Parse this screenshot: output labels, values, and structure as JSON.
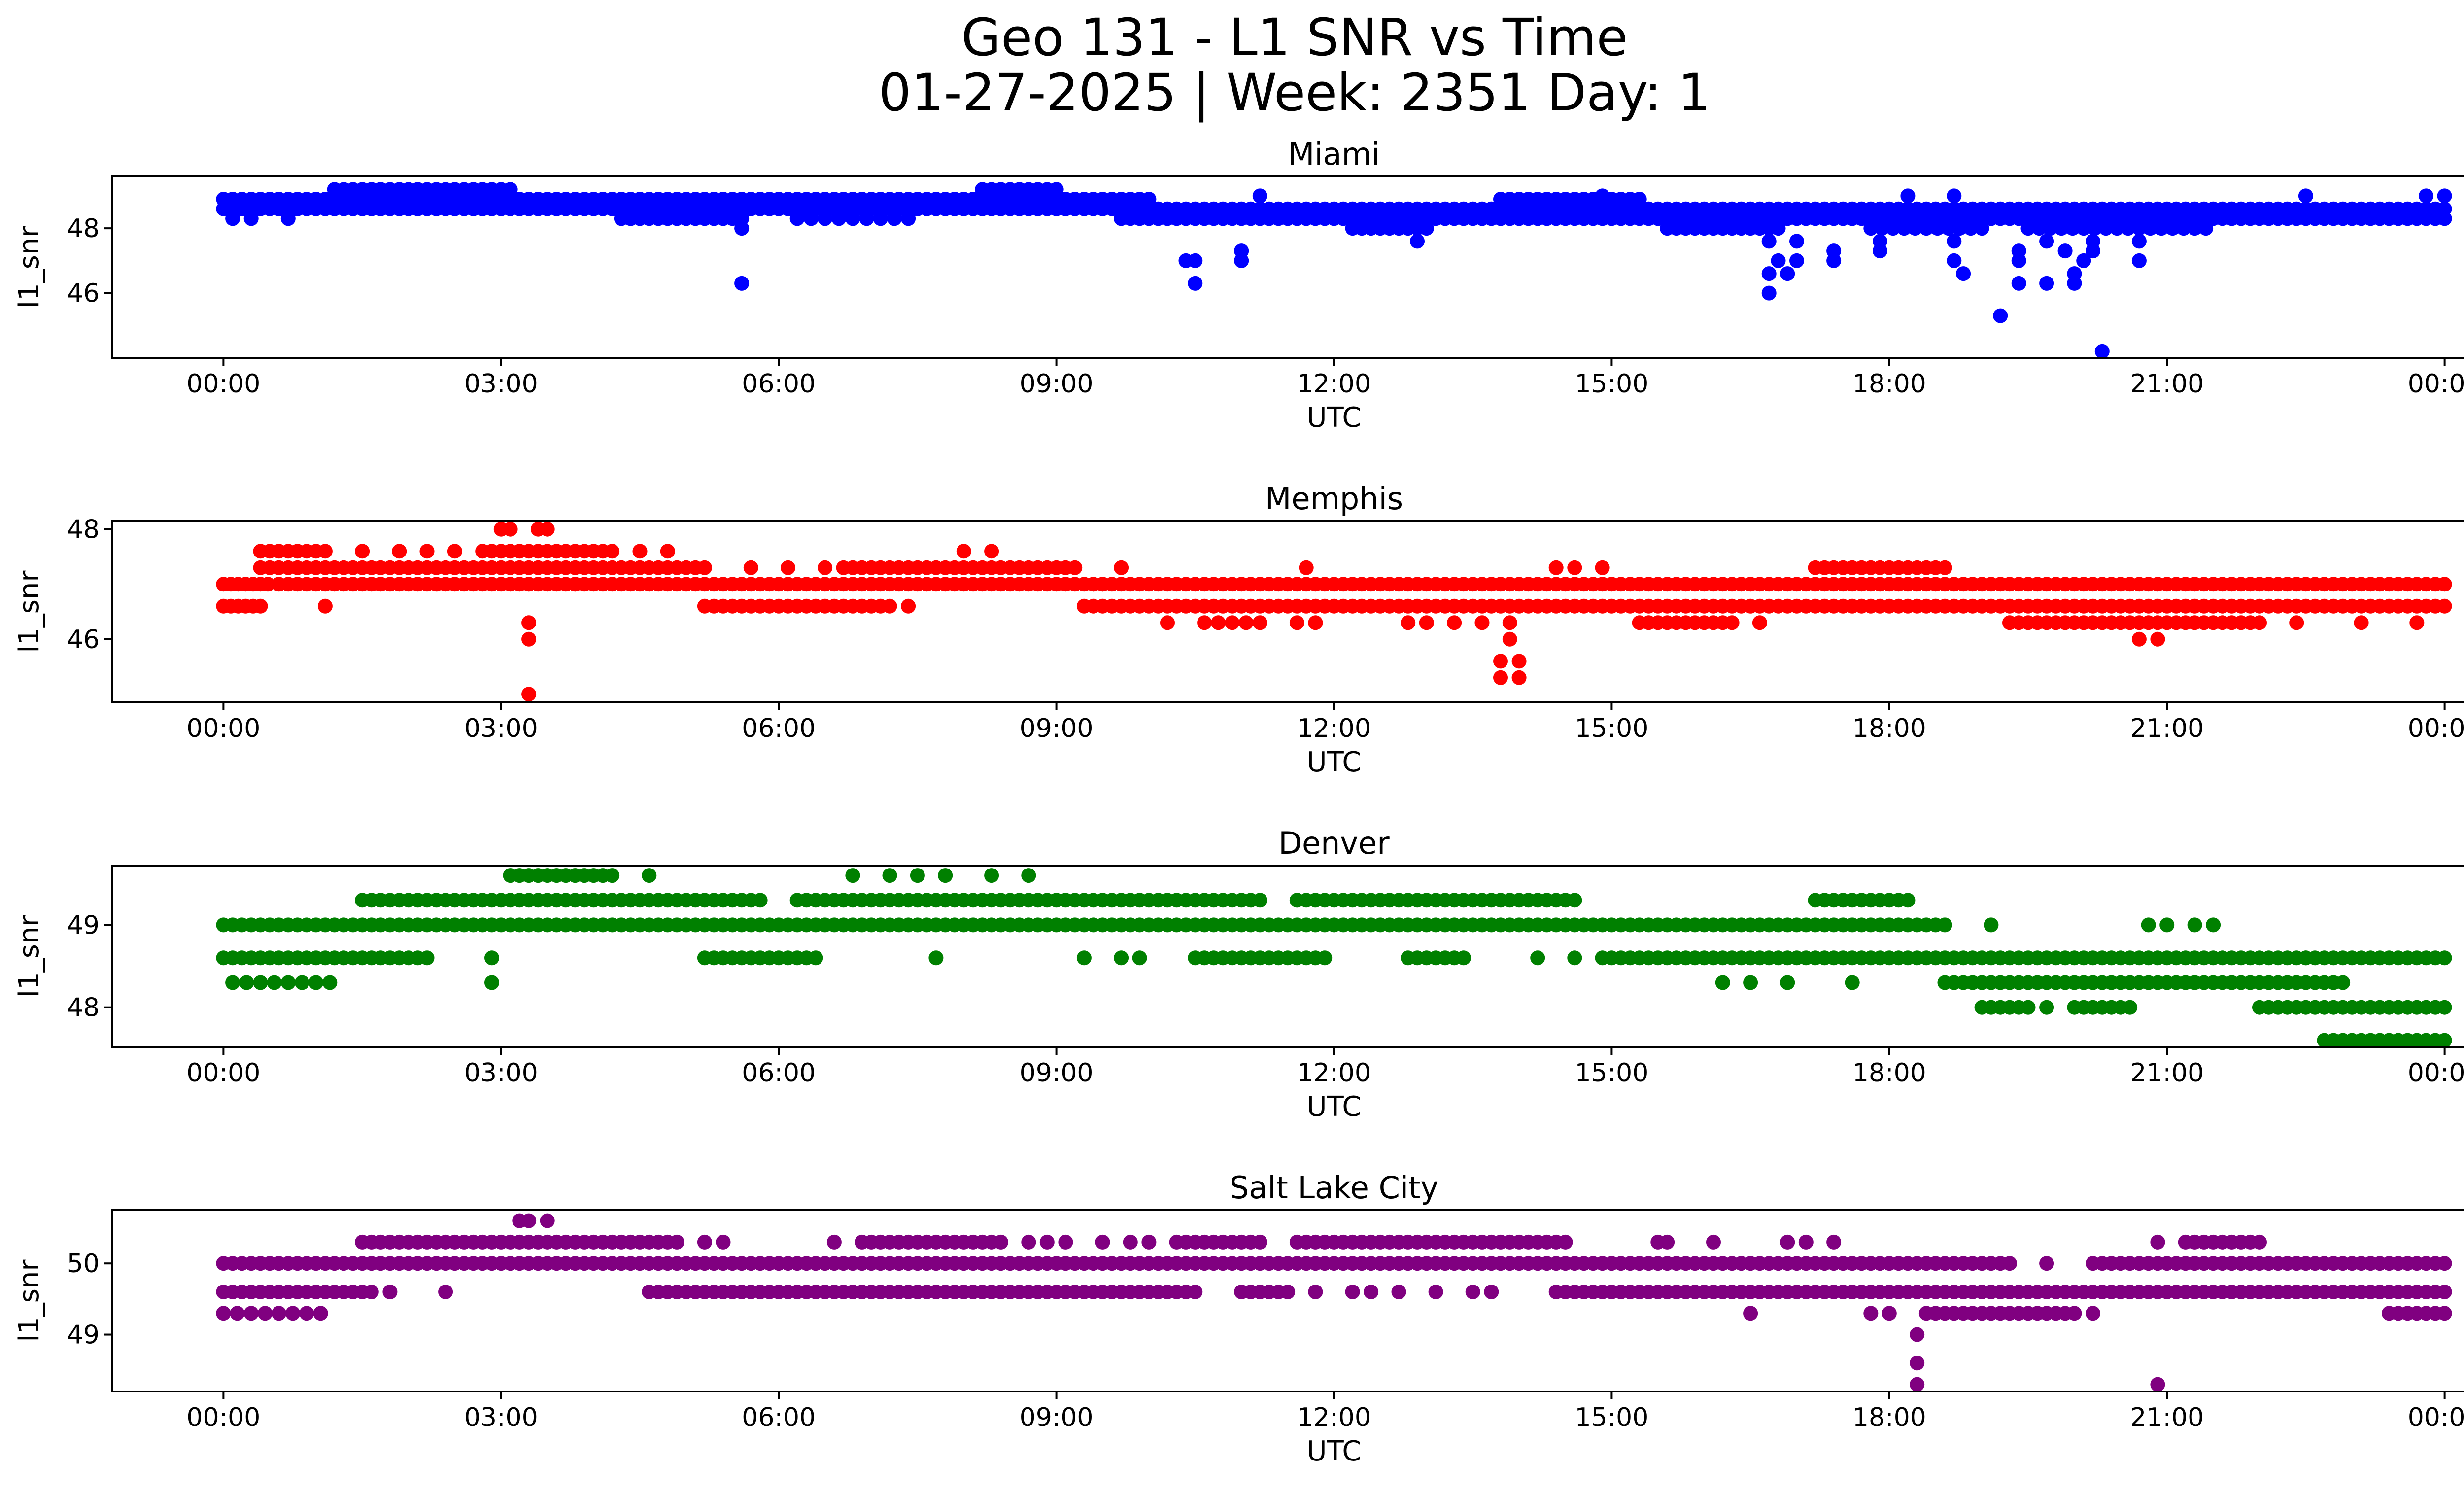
{
  "figure": {
    "title_line1": "Geo 131 - L1 SNR vs Time",
    "title_line2": "01-27-2025 | Week: 2351 Day: 1"
  },
  "chart_data": [
    {
      "type": "scatter",
      "title": "Miami",
      "xlabel": "UTC",
      "ylabel": "l1_snr",
      "color": "#0000ff",
      "xlim_hours": [
        -1.2,
        25.2
      ],
      "ylim": [
        44.0,
        49.6
      ],
      "xticks": [
        {
          "hour": 0,
          "label": "00:00"
        },
        {
          "hour": 3,
          "label": "03:00"
        },
        {
          "hour": 6,
          "label": "06:00"
        },
        {
          "hour": 9,
          "label": "09:00"
        },
        {
          "hour": 12,
          "label": "12:00"
        },
        {
          "hour": 15,
          "label": "15:00"
        },
        {
          "hour": 18,
          "label": "18:00"
        },
        {
          "hour": 21,
          "label": "21:00"
        },
        {
          "hour": 24,
          "label": "00:00"
        }
      ],
      "yticks": [
        {
          "value": 46,
          "label": "46"
        },
        {
          "value": 48,
          "label": "48"
        }
      ],
      "bands": [
        {
          "y": 48.6,
          "start": 0.0,
          "end": 10.0,
          "step": 0.1
        },
        {
          "y": 48.9,
          "start": 0.0,
          "end": 10.0,
          "step": 0.1
        },
        {
          "y": 48.6,
          "start": 0.5,
          "end": 9.5,
          "step": 0.1
        },
        {
          "y": 49.2,
          "start": 1.2,
          "end": 3.1,
          "step": 0.1
        },
        {
          "y": 49.2,
          "start": 8.2,
          "end": 9.0,
          "step": 0.1
        },
        {
          "y": 48.3,
          "start": 4.3,
          "end": 5.6,
          "step": 0.1
        },
        {
          "y": 48.3,
          "start": 6.2,
          "end": 7.4,
          "step": 0.15
        },
        {
          "y": 48.6,
          "start": 10.0,
          "end": 24.0,
          "step": 0.1
        },
        {
          "y": 48.3,
          "start": 9.7,
          "end": 24.0,
          "step": 0.1
        },
        {
          "y": 48.9,
          "start": 13.8,
          "end": 15.3,
          "step": 0.1
        },
        {
          "y": 48.0,
          "start": 12.2,
          "end": 13.0,
          "step": 0.1
        },
        {
          "y": 48.0,
          "start": 15.6,
          "end": 16.8,
          "step": 0.1
        },
        {
          "y": 48.0,
          "start": 17.8,
          "end": 19.0,
          "step": 0.12
        },
        {
          "y": 48.0,
          "start": 19.5,
          "end": 21.5,
          "step": 0.12
        }
      ],
      "points": [
        [
          0.1,
          48.3
        ],
        [
          0.3,
          48.3
        ],
        [
          0.7,
          48.3
        ],
        [
          4.4,
          48.3
        ],
        [
          5.6,
          46.3
        ],
        [
          5.6,
          48.0
        ],
        [
          10.4,
          47.0
        ],
        [
          10.5,
          47.0
        ],
        [
          10.5,
          46.3
        ],
        [
          11.0,
          47.3
        ],
        [
          11.0,
          47.0
        ],
        [
          11.2,
          49.0
        ],
        [
          12.9,
          47.6
        ],
        [
          14.9,
          49.0
        ],
        [
          16.7,
          47.6
        ],
        [
          16.8,
          47.0
        ],
        [
          16.7,
          46.6
        ],
        [
          16.9,
          46.6
        ],
        [
          16.7,
          46.0
        ],
        [
          17.0,
          47.6
        ],
        [
          17.0,
          47.0
        ],
        [
          17.4,
          47.0
        ],
        [
          17.4,
          47.3
        ],
        [
          17.9,
          47.6
        ],
        [
          17.9,
          47.3
        ],
        [
          18.2,
          49.0
        ],
        [
          18.7,
          49.0
        ],
        [
          18.7,
          47.6
        ],
        [
          18.7,
          47.0
        ],
        [
          18.8,
          46.6
        ],
        [
          19.2,
          45.3
        ],
        [
          19.4,
          47.3
        ],
        [
          19.4,
          47.0
        ],
        [
          19.4,
          46.3
        ],
        [
          19.7,
          47.6
        ],
        [
          19.7,
          46.3
        ],
        [
          19.9,
          47.3
        ],
        [
          20.0,
          46.6
        ],
        [
          20.0,
          46.3
        ],
        [
          20.1,
          47.0
        ],
        [
          20.2,
          47.3
        ],
        [
          20.2,
          47.6
        ],
        [
          20.3,
          44.2
        ],
        [
          20.7,
          47.0
        ],
        [
          20.7,
          47.6
        ],
        [
          22.5,
          49.0
        ],
        [
          23.8,
          49.0
        ],
        [
          24.0,
          49.0
        ]
      ]
    },
    {
      "type": "scatter",
      "title": "Memphis",
      "xlabel": "UTC",
      "ylabel": "l1_snr",
      "color": "#ff0000",
      "xlim_hours": [
        -1.2,
        25.2
      ],
      "ylim": [
        44.85,
        48.15
      ],
      "xticks": [
        {
          "hour": 0,
          "label": "00:00"
        },
        {
          "hour": 3,
          "label": "03:00"
        },
        {
          "hour": 6,
          "label": "06:00"
        },
        {
          "hour": 9,
          "label": "09:00"
        },
        {
          "hour": 12,
          "label": "12:00"
        },
        {
          "hour": 15,
          "label": "15:00"
        },
        {
          "hour": 18,
          "label": "18:00"
        },
        {
          "hour": 21,
          "label": "21:00"
        },
        {
          "hour": 24,
          "label": "00:00"
        }
      ],
      "yticks": [
        {
          "value": 46,
          "label": "46"
        },
        {
          "value": 48,
          "label": "48"
        }
      ],
      "bands": [
        {
          "y": 46.6,
          "start": 0.0,
          "end": 0.4,
          "step": 0.08
        },
        {
          "y": 47.0,
          "start": 0.0,
          "end": 0.5,
          "step": 0.08
        },
        {
          "y": 47.3,
          "start": 0.4,
          "end": 5.2,
          "step": 0.1
        },
        {
          "y": 47.6,
          "start": 0.4,
          "end": 1.1,
          "step": 0.1
        },
        {
          "y": 47.0,
          "start": 0.6,
          "end": 9.5,
          "step": 0.1
        },
        {
          "y": 47.6,
          "start": 2.8,
          "end": 4.2,
          "step": 0.1
        },
        {
          "y": 47.3,
          "start": 6.7,
          "end": 9.2,
          "step": 0.1
        },
        {
          "y": 46.6,
          "start": 5.2,
          "end": 7.2,
          "step": 0.1
        },
        {
          "y": 47.0,
          "start": 9.4,
          "end": 24.0,
          "step": 0.1
        },
        {
          "y": 46.6,
          "start": 9.3,
          "end": 24.0,
          "step": 0.1
        },
        {
          "y": 46.3,
          "start": 15.3,
          "end": 16.3,
          "step": 0.1
        },
        {
          "y": 47.3,
          "start": 17.2,
          "end": 18.6,
          "step": 0.1
        },
        {
          "y": 46.3,
          "start": 19.3,
          "end": 22.0,
          "step": 0.1
        },
        {
          "y": 46.3,
          "start": 10.6,
          "end": 11.2,
          "step": 0.15
        }
      ],
      "points": [
        [
          1.1,
          46.6
        ],
        [
          1.5,
          47.6
        ],
        [
          1.9,
          47.6
        ],
        [
          2.2,
          47.6
        ],
        [
          2.5,
          47.6
        ],
        [
          3.0,
          48.0
        ],
        [
          3.1,
          48.0
        ],
        [
          3.4,
          48.0
        ],
        [
          3.5,
          48.0
        ],
        [
          3.3,
          47.0
        ],
        [
          3.3,
          46.3
        ],
        [
          3.3,
          46.0
        ],
        [
          3.3,
          45.0
        ],
        [
          3.8,
          47.0
        ],
        [
          4.5,
          47.6
        ],
        [
          4.8,
          47.6
        ],
        [
          5.7,
          47.3
        ],
        [
          6.5,
          47.3
        ],
        [
          6.1,
          47.3
        ],
        [
          7.4,
          46.6
        ],
        [
          8.0,
          47.6
        ],
        [
          8.3,
          47.6
        ],
        [
          9.7,
          47.3
        ],
        [
          10.2,
          46.3
        ],
        [
          11.7,
          47.3
        ],
        [
          11.6,
          46.3
        ],
        [
          11.8,
          46.3
        ],
        [
          12.8,
          46.3
        ],
        [
          13.0,
          46.3
        ],
        [
          13.3,
          46.3
        ],
        [
          13.6,
          46.3
        ],
        [
          13.9,
          46.3
        ],
        [
          13.9,
          46.0
        ],
        [
          13.8,
          45.6
        ],
        [
          14.0,
          45.6
        ],
        [
          13.8,
          45.3
        ],
        [
          14.0,
          45.3
        ],
        [
          14.4,
          47.3
        ],
        [
          14.6,
          47.3
        ],
        [
          14.9,
          47.3
        ],
        [
          16.6,
          46.3
        ],
        [
          20.7,
          46.0
        ],
        [
          20.9,
          46.0
        ],
        [
          22.4,
          46.3
        ],
        [
          23.1,
          46.3
        ],
        [
          23.7,
          46.3
        ]
      ]
    },
    {
      "type": "scatter",
      "title": "Denver",
      "xlabel": "UTC",
      "ylabel": "l1_snr",
      "color": "#008000",
      "xlim_hours": [
        -1.2,
        25.2
      ],
      "ylim": [
        47.52,
        49.72
      ],
      "xticks": [
        {
          "hour": 0,
          "label": "00:00"
        },
        {
          "hour": 3,
          "label": "03:00"
        },
        {
          "hour": 6,
          "label": "06:00"
        },
        {
          "hour": 9,
          "label": "09:00"
        },
        {
          "hour": 12,
          "label": "12:00"
        },
        {
          "hour": 15,
          "label": "15:00"
        },
        {
          "hour": 18,
          "label": "18:00"
        },
        {
          "hour": 21,
          "label": "21:00"
        },
        {
          "hour": 24,
          "label": "00:00"
        }
      ],
      "yticks": [
        {
          "value": 48,
          "label": "48"
        },
        {
          "value": 49,
          "label": "49"
        }
      ],
      "bands": [
        {
          "y": 48.6,
          "start": 0.0,
          "end": 2.2,
          "step": 0.1
        },
        {
          "y": 49.0,
          "start": 0.0,
          "end": 0.7,
          "step": 0.1
        },
        {
          "y": 49.0,
          "start": 0.8,
          "end": 18.6,
          "step": 0.1
        },
        {
          "y": 49.3,
          "start": 1.5,
          "end": 5.8,
          "step": 0.1
        },
        {
          "y": 49.6,
          "start": 3.1,
          "end": 4.2,
          "step": 0.1
        },
        {
          "y": 49.3,
          "start": 6.2,
          "end": 11.2,
          "step": 0.1
        },
        {
          "y": 49.3,
          "start": 11.6,
          "end": 14.6,
          "step": 0.1
        },
        {
          "y": 48.6,
          "start": 5.2,
          "end": 6.4,
          "step": 0.1
        },
        {
          "y": 48.6,
          "start": 10.5,
          "end": 11.9,
          "step": 0.1
        },
        {
          "y": 48.6,
          "start": 12.8,
          "end": 13.4,
          "step": 0.1
        },
        {
          "y": 48.6,
          "start": 14.9,
          "end": 24.0,
          "step": 0.1
        },
        {
          "y": 48.3,
          "start": 0.1,
          "end": 1.2,
          "step": 0.15
        },
        {
          "y": 48.3,
          "start": 18.6,
          "end": 22.9,
          "step": 0.1
        },
        {
          "y": 49.3,
          "start": 17.2,
          "end": 18.2,
          "step": 0.1
        },
        {
          "y": 48.0,
          "start": 22.0,
          "end": 24.0,
          "step": 0.1
        },
        {
          "y": 47.6,
          "start": 22.7,
          "end": 24.0,
          "step": 0.1
        },
        {
          "y": 48.0,
          "start": 19.0,
          "end": 19.5,
          "step": 0.1
        },
        {
          "y": 48.0,
          "start": 20.0,
          "end": 20.6,
          "step": 0.1
        }
      ],
      "points": [
        [
          2.9,
          48.6
        ],
        [
          2.9,
          48.3
        ],
        [
          4.6,
          49.6
        ],
        [
          6.8,
          49.6
        ],
        [
          7.2,
          49.6
        ],
        [
          7.5,
          49.6
        ],
        [
          7.8,
          49.6
        ],
        [
          8.3,
          49.6
        ],
        [
          8.7,
          49.6
        ],
        [
          7.7,
          48.6
        ],
        [
          9.3,
          48.6
        ],
        [
          9.7,
          48.6
        ],
        [
          9.9,
          48.6
        ],
        [
          11.6,
          49.3
        ],
        [
          14.2,
          48.6
        ],
        [
          14.6,
          48.6
        ],
        [
          16.2,
          48.3
        ],
        [
          16.5,
          48.3
        ],
        [
          16.9,
          48.3
        ],
        [
          17.6,
          48.3
        ],
        [
          19.1,
          49.0
        ],
        [
          19.7,
          48.0
        ],
        [
          20.8,
          49.0
        ],
        [
          21.0,
          49.0
        ],
        [
          21.3,
          49.0
        ],
        [
          21.5,
          49.0
        ],
        [
          22.5,
          48.6
        ]
      ]
    },
    {
      "type": "scatter",
      "title": "Salt Lake City",
      "xlabel": "UTC",
      "ylabel": "l1_snr",
      "color": "#800080",
      "xlim_hours": [
        -1.2,
        25.2
      ],
      "ylim": [
        48.2,
        50.75
      ],
      "xticks": [
        {
          "hour": 0,
          "label": "00:00"
        },
        {
          "hour": 3,
          "label": "03:00"
        },
        {
          "hour": 6,
          "label": "06:00"
        },
        {
          "hour": 9,
          "label": "09:00"
        },
        {
          "hour": 12,
          "label": "12:00"
        },
        {
          "hour": 15,
          "label": "15:00"
        },
        {
          "hour": 18,
          "label": "18:00"
        },
        {
          "hour": 21,
          "label": "21:00"
        },
        {
          "hour": 24,
          "label": "00:00"
        }
      ],
      "yticks": [
        {
          "value": 49,
          "label": "49"
        },
        {
          "value": 50,
          "label": "50"
        }
      ],
      "bands": [
        {
          "y": 50.0,
          "start": 0.0,
          "end": 19.3,
          "step": 0.1
        },
        {
          "y": 50.0,
          "start": 20.2,
          "end": 24.0,
          "step": 0.1
        },
        {
          "y": 49.6,
          "start": 0.0,
          "end": 1.6,
          "step": 0.1
        },
        {
          "y": 49.6,
          "start": 4.6,
          "end": 10.5,
          "step": 0.1
        },
        {
          "y": 49.6,
          "start": 14.4,
          "end": 17.8,
          "step": 0.1
        },
        {
          "y": 49.6,
          "start": 17.8,
          "end": 24.0,
          "step": 0.1
        },
        {
          "y": 50.3,
          "start": 1.5,
          "end": 4.9,
          "step": 0.1
        },
        {
          "y": 50.3,
          "start": 6.9,
          "end": 8.4,
          "step": 0.1
        },
        {
          "y": 50.3,
          "start": 10.3,
          "end": 11.2,
          "step": 0.1
        },
        {
          "y": 50.3,
          "start": 11.6,
          "end": 14.5,
          "step": 0.1
        },
        {
          "y": 50.3,
          "start": 21.2,
          "end": 22.0,
          "step": 0.1
        },
        {
          "y": 49.3,
          "start": 0.0,
          "end": 1.1,
          "step": 0.15
        },
        {
          "y": 49.3,
          "start": 18.4,
          "end": 20.0,
          "step": 0.1
        },
        {
          "y": 49.6,
          "start": 11.0,
          "end": 11.5,
          "step": 0.1
        },
        {
          "y": 49.3,
          "start": 23.4,
          "end": 24.0,
          "step": 0.1
        }
      ],
      "points": [
        [
          1.8,
          49.6
        ],
        [
          2.4,
          49.6
        ],
        [
          3.2,
          50.6
        ],
        [
          3.3,
          50.6
        ],
        [
          3.5,
          50.6
        ],
        [
          5.2,
          50.3
        ],
        [
          5.4,
          50.3
        ],
        [
          6.6,
          50.3
        ],
        [
          8.7,
          50.3
        ],
        [
          8.9,
          50.3
        ],
        [
          9.1,
          50.3
        ],
        [
          9.5,
          50.3
        ],
        [
          9.8,
          50.3
        ],
        [
          10.0,
          50.3
        ],
        [
          11.8,
          49.6
        ],
        [
          12.2,
          49.6
        ],
        [
          12.4,
          49.6
        ],
        [
          12.7,
          49.6
        ],
        [
          13.1,
          49.6
        ],
        [
          13.5,
          49.6
        ],
        [
          13.7,
          49.6
        ],
        [
          15.5,
          50.3
        ],
        [
          15.6,
          50.3
        ],
        [
          16.1,
          50.3
        ],
        [
          16.5,
          49.3
        ],
        [
          16.9,
          50.3
        ],
        [
          17.1,
          50.3
        ],
        [
          17.4,
          50.3
        ],
        [
          17.8,
          49.3
        ],
        [
          18.0,
          49.3
        ],
        [
          18.3,
          49.0
        ],
        [
          18.3,
          48.6
        ],
        [
          18.3,
          48.3
        ],
        [
          20.2,
          49.3
        ],
        [
          19.7,
          50.0
        ],
        [
          20.9,
          50.3
        ],
        [
          20.9,
          48.3
        ]
      ]
    }
  ]
}
